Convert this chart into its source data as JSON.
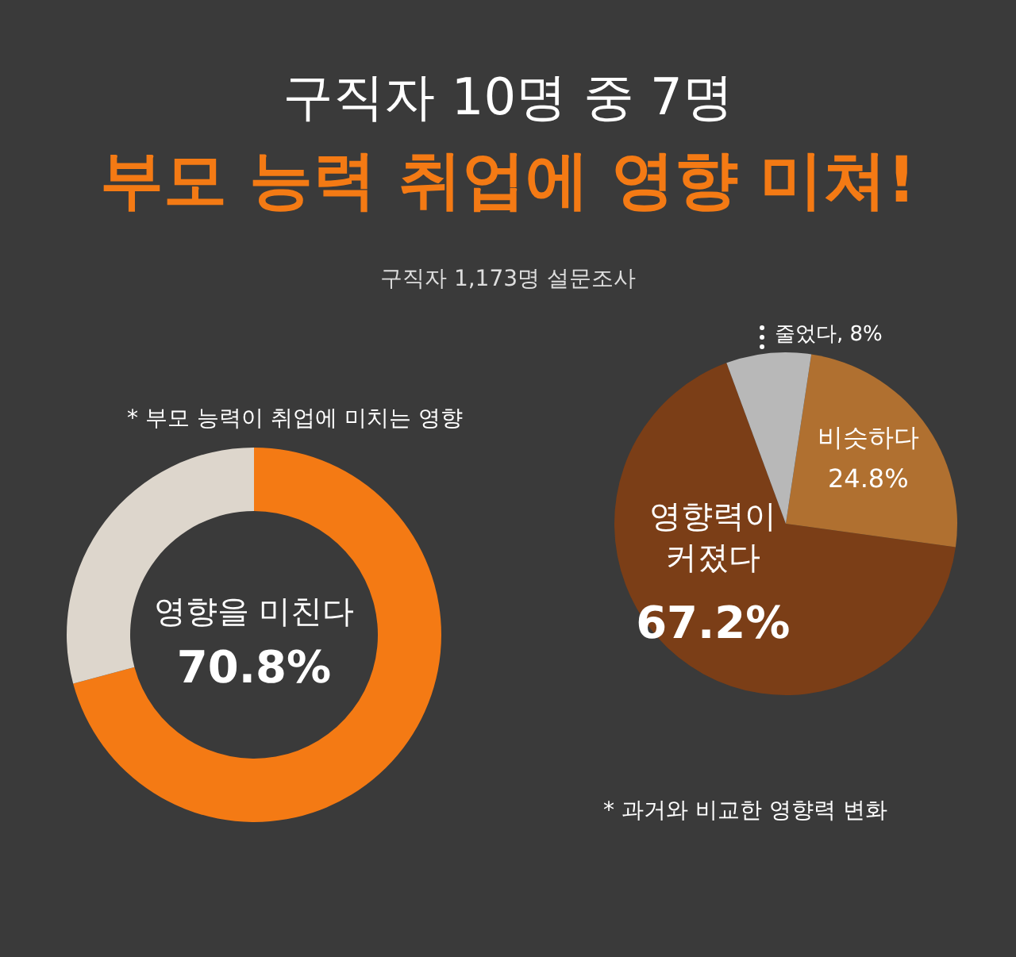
{
  "chart_data": [
    {
      "type": "donut",
      "title": "구직자 10명 중 7명",
      "subtitle": "부모 능력 취업에 영향 미쳐!",
      "annotations": [
        "구직자 1,173명 설문조사",
        "* 부모 능력이 취업에 미치는 영향"
      ],
      "categories": [
        "영향을 미친다",
        null
      ],
      "values": [
        70.8,
        29.2
      ],
      "colors": [
        "#f47a14",
        "#ddd6cc"
      ],
      "value_labels": [
        "70.8%",
        null
      ]
    },
    {
      "type": "pie",
      "annotations": [
        "* 과거와 비교한 영향력 변화"
      ],
      "categories": [
        "영향력이 커졌다",
        "비슷하다",
        "줄었다"
      ],
      "values": [
        67.2,
        24.8,
        8
      ],
      "colors": [
        "#7b3e17",
        "#b07030",
        "#b8b8b8"
      ],
      "value_labels": [
        "67.2%",
        "24.8%",
        "8%"
      ]
    }
  ]
}
